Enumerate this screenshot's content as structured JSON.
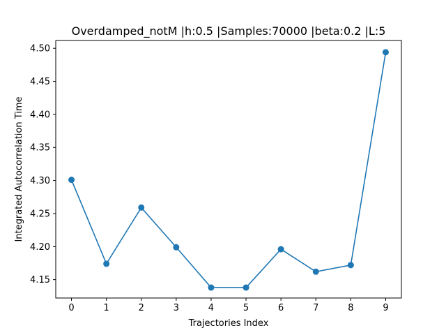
{
  "chart_data": {
    "type": "line",
    "title": "Overdamped_notM |h:0.5 |Samples:70000 |beta:0.2 |L:5",
    "xlabel": "Trajectories Index",
    "ylabel": "Integrated Autocorrelation Time",
    "x": [
      0,
      1,
      2,
      3,
      4,
      5,
      6,
      7,
      8,
      9
    ],
    "series": [
      {
        "values": [
          4.301,
          4.174,
          4.259,
          4.199,
          4.138,
          4.138,
          4.196,
          4.162,
          4.172,
          4.494
        ],
        "color": "#1f77b4",
        "marker": "circle"
      }
    ],
    "xticks": [
      "0",
      "1",
      "2",
      "3",
      "4",
      "5",
      "6",
      "7",
      "8",
      "9"
    ],
    "yticks": [
      4.15,
      4.2,
      4.25,
      4.3,
      4.35,
      4.4,
      4.45,
      4.5
    ],
    "ytick_labels": [
      "4.15",
      "4.20",
      "4.25",
      "4.30",
      "4.35",
      "4.40",
      "4.45",
      "4.50"
    ],
    "xlim": [
      -0.45,
      9.45
    ],
    "ylim": [
      4.1222,
      4.5118
    ],
    "grid": false,
    "legend": "none"
  }
}
